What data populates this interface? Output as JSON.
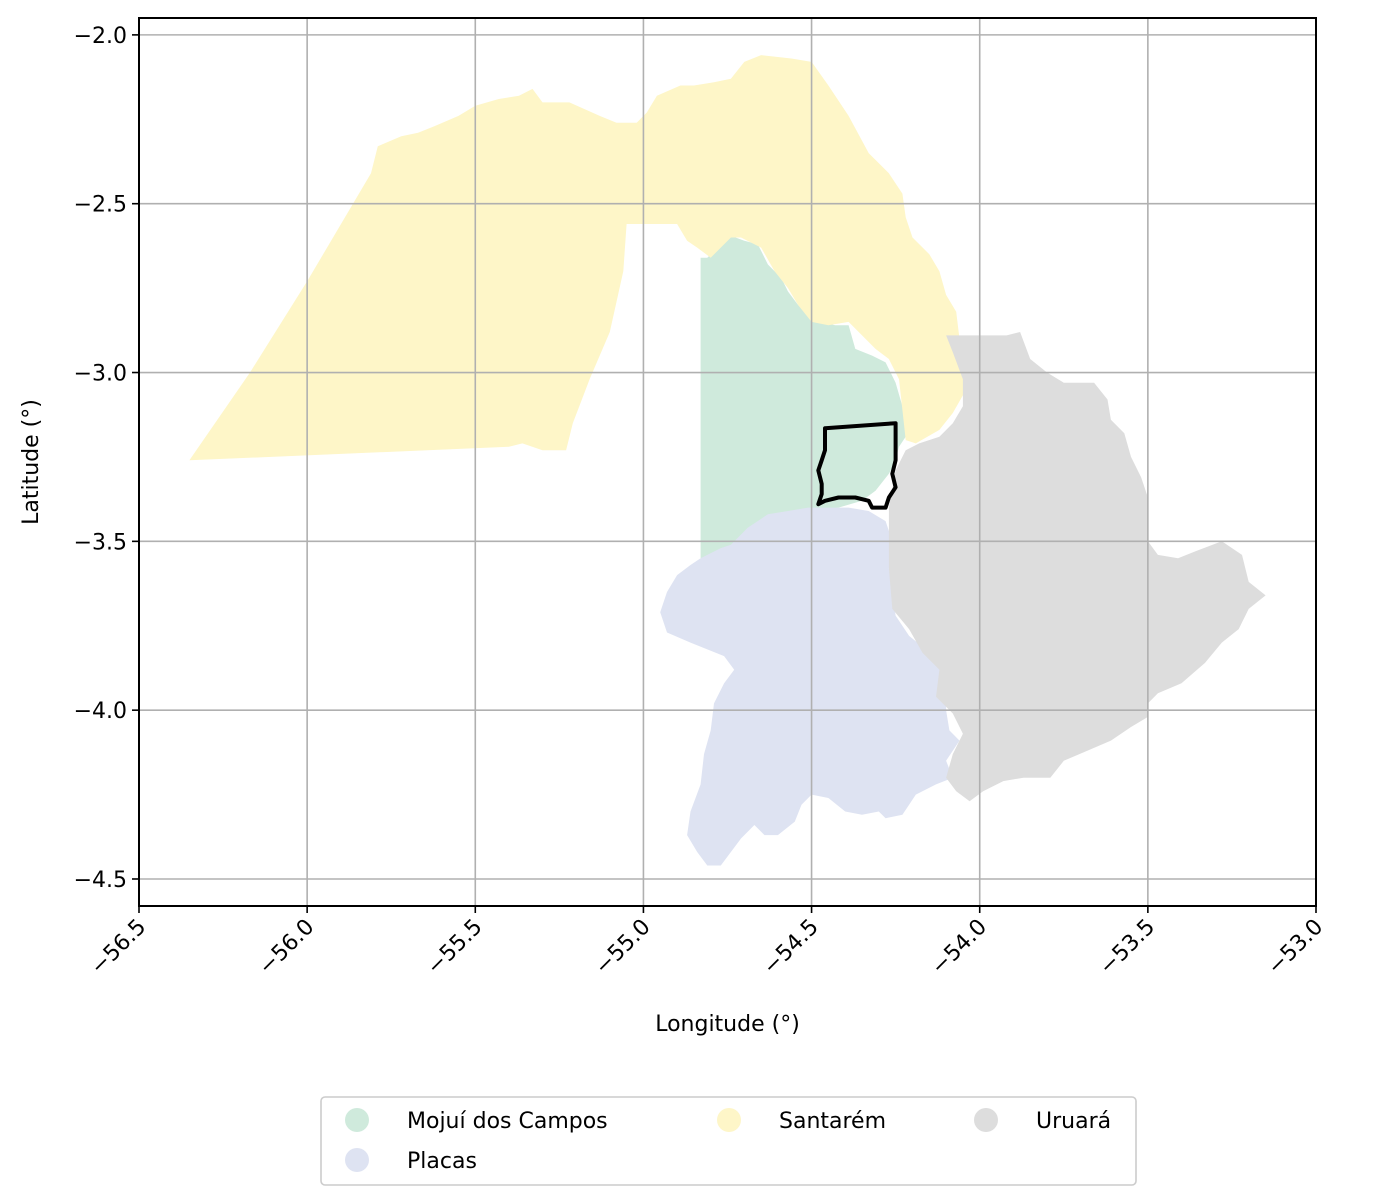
{
  "map": {
    "xlabel": "Longitude (°)",
    "ylabel": "Latitude (°)",
    "xlim": [
      -56.5,
      -53.0
    ],
    "ylim": [
      -4.58,
      -1.95
    ],
    "x_ticks": [
      -56.5,
      -56.0,
      -55.5,
      -55.0,
      -54.5,
      -54.0,
      -53.5,
      -53.0
    ],
    "x_tick_labels": [
      "−56.5",
      "−56.0",
      "−55.5",
      "−55.0",
      "−54.5",
      "−54.0",
      "−53.5",
      "−53.0"
    ],
    "y_ticks": [
      -2.0,
      -2.5,
      -3.0,
      -3.5,
      -4.0,
      -4.5
    ],
    "y_tick_labels": [
      "−2.0",
      "−2.5",
      "−3.0",
      "−3.5",
      "−4.0",
      "−4.5"
    ],
    "grid": true,
    "legend_placement": "bottom-center",
    "regions": [
      {
        "name": "Mojuí dos Campos",
        "color": "#cfeadc",
        "coords": [
          [
            -54.83,
            -2.66
          ],
          [
            -54.81,
            -2.66
          ],
          [
            -54.78,
            -2.63
          ],
          [
            -54.74,
            -2.595
          ],
          [
            -54.7,
            -2.61
          ],
          [
            -54.66,
            -2.62
          ],
          [
            -54.63,
            -2.68
          ],
          [
            -54.59,
            -2.72
          ],
          [
            -54.57,
            -2.76
          ],
          [
            -54.54,
            -2.8
          ],
          [
            -54.51,
            -2.83
          ],
          [
            -54.47,
            -2.85
          ],
          [
            -54.43,
            -2.86
          ],
          [
            -54.39,
            -2.86
          ],
          [
            -54.37,
            -2.93
          ],
          [
            -54.32,
            -2.95
          ],
          [
            -54.28,
            -2.97
          ],
          [
            -54.25,
            -3.03
          ],
          [
            -54.23,
            -3.1
          ],
          [
            -54.22,
            -3.19
          ],
          [
            -54.24,
            -3.22
          ],
          [
            -54.25,
            -3.26
          ],
          [
            -54.27,
            -3.3
          ],
          [
            -54.31,
            -3.35
          ],
          [
            -54.35,
            -3.38
          ],
          [
            -54.42,
            -3.4
          ],
          [
            -54.49,
            -3.41
          ],
          [
            -54.55,
            -3.42
          ],
          [
            -54.6,
            -3.44
          ],
          [
            -54.65,
            -3.48
          ],
          [
            -54.7,
            -3.51
          ],
          [
            -54.75,
            -3.52
          ],
          [
            -54.8,
            -3.54
          ],
          [
            -54.83,
            -3.55
          ]
        ]
      },
      {
        "name": "Placas",
        "color": "#dee3f2",
        "coords": [
          [
            -54.83,
            -3.55
          ],
          [
            -54.77,
            -3.52
          ],
          [
            -54.74,
            -3.51
          ],
          [
            -54.69,
            -3.46
          ],
          [
            -54.63,
            -3.42
          ],
          [
            -54.57,
            -3.41
          ],
          [
            -54.51,
            -3.4
          ],
          [
            -54.45,
            -3.4
          ],
          [
            -54.39,
            -3.4
          ],
          [
            -54.33,
            -3.41
          ],
          [
            -54.28,
            -3.44
          ],
          [
            -54.26,
            -3.5
          ],
          [
            -54.27,
            -3.58
          ],
          [
            -54.26,
            -3.65
          ],
          [
            -54.25,
            -3.72
          ],
          [
            -54.21,
            -3.78
          ],
          [
            -54.16,
            -3.82
          ],
          [
            -54.12,
            -3.85
          ],
          [
            -54.1,
            -3.9
          ],
          [
            -54.1,
            -4.0
          ],
          [
            -54.09,
            -4.06
          ],
          [
            -54.06,
            -4.09
          ],
          [
            -54.1,
            -4.15
          ],
          [
            -54.08,
            -4.2
          ],
          [
            -54.13,
            -4.22
          ],
          [
            -54.19,
            -4.25
          ],
          [
            -54.21,
            -4.28
          ],
          [
            -54.23,
            -4.31
          ],
          [
            -54.28,
            -4.32
          ],
          [
            -54.3,
            -4.3
          ],
          [
            -54.35,
            -4.31
          ],
          [
            -54.4,
            -4.3
          ],
          [
            -54.45,
            -4.26
          ],
          [
            -54.5,
            -4.25
          ],
          [
            -54.53,
            -4.28
          ],
          [
            -54.55,
            -4.33
          ],
          [
            -54.6,
            -4.37
          ],
          [
            -54.64,
            -4.37
          ],
          [
            -54.67,
            -4.34
          ],
          [
            -54.71,
            -4.38
          ],
          [
            -54.74,
            -4.42
          ],
          [
            -54.77,
            -4.46
          ],
          [
            -54.81,
            -4.46
          ],
          [
            -54.84,
            -4.42
          ],
          [
            -54.87,
            -4.37
          ],
          [
            -54.86,
            -4.3
          ],
          [
            -54.83,
            -4.22
          ],
          [
            -54.82,
            -4.13
          ],
          [
            -54.8,
            -4.06
          ],
          [
            -54.79,
            -3.98
          ],
          [
            -54.76,
            -3.92
          ],
          [
            -54.73,
            -3.88
          ],
          [
            -54.76,
            -3.84
          ],
          [
            -54.81,
            -3.82
          ],
          [
            -54.86,
            -3.8
          ],
          [
            -54.93,
            -3.77
          ],
          [
            -54.95,
            -3.71
          ],
          [
            -54.93,
            -3.65
          ],
          [
            -54.9,
            -3.6
          ],
          [
            -54.86,
            -3.57
          ]
        ]
      },
      {
        "name": "Santarém",
        "color": "#fef6c8",
        "coords": [
          [
            -56.35,
            -3.26
          ],
          [
            -56.17,
            -3.0
          ],
          [
            -56.0,
            -2.73
          ],
          [
            -55.81,
            -2.41
          ],
          [
            -55.79,
            -2.33
          ],
          [
            -55.72,
            -2.3
          ],
          [
            -55.67,
            -2.29
          ],
          [
            -55.62,
            -2.27
          ],
          [
            -55.55,
            -2.24
          ],
          [
            -55.5,
            -2.21
          ],
          [
            -55.43,
            -2.19
          ],
          [
            -55.37,
            -2.18
          ],
          [
            -55.33,
            -2.16
          ],
          [
            -55.3,
            -2.2
          ],
          [
            -55.22,
            -2.2
          ],
          [
            -55.13,
            -2.24
          ],
          [
            -55.08,
            -2.26
          ],
          [
            -55.02,
            -2.26
          ],
          [
            -54.99,
            -2.23
          ],
          [
            -54.96,
            -2.18
          ],
          [
            -54.89,
            -2.15
          ],
          [
            -54.85,
            -2.15
          ],
          [
            -54.79,
            -2.14
          ],
          [
            -54.74,
            -2.13
          ],
          [
            -54.7,
            -2.08
          ],
          [
            -54.65,
            -2.06
          ],
          [
            -54.56,
            -2.07
          ],
          [
            -54.5,
            -2.08
          ],
          [
            -54.45,
            -2.15
          ],
          [
            -54.39,
            -2.24
          ],
          [
            -54.33,
            -2.35
          ],
          [
            -54.27,
            -2.41
          ],
          [
            -54.23,
            -2.47
          ],
          [
            -54.22,
            -2.54
          ],
          [
            -54.2,
            -2.6
          ],
          [
            -54.15,
            -2.65
          ],
          [
            -54.12,
            -2.7
          ],
          [
            -54.1,
            -2.77
          ],
          [
            -54.07,
            -2.82
          ],
          [
            -54.06,
            -2.9
          ],
          [
            -54.05,
            -2.98
          ],
          [
            -54.04,
            -3.05
          ],
          [
            -54.08,
            -3.12
          ],
          [
            -54.12,
            -3.17
          ],
          [
            -54.19,
            -3.21
          ],
          [
            -54.22,
            -3.2
          ],
          [
            -54.23,
            -3.11
          ],
          [
            -54.24,
            -3.02
          ],
          [
            -54.27,
            -2.96
          ],
          [
            -54.31,
            -2.93
          ],
          [
            -54.36,
            -2.88
          ],
          [
            -54.39,
            -2.85
          ],
          [
            -54.45,
            -2.86
          ],
          [
            -54.5,
            -2.85
          ],
          [
            -54.54,
            -2.8
          ],
          [
            -54.57,
            -2.75
          ],
          [
            -54.61,
            -2.7
          ],
          [
            -54.65,
            -2.63
          ],
          [
            -54.71,
            -2.6
          ],
          [
            -54.74,
            -2.6
          ],
          [
            -54.8,
            -2.66
          ],
          [
            -54.84,
            -2.63
          ],
          [
            -54.87,
            -2.61
          ],
          [
            -54.9,
            -2.56
          ],
          [
            -54.95,
            -2.56
          ],
          [
            -55.05,
            -2.56
          ],
          [
            -55.06,
            -2.7
          ],
          [
            -55.1,
            -2.88
          ],
          [
            -55.16,
            -3.02
          ],
          [
            -55.21,
            -3.15
          ],
          [
            -55.23,
            -3.23
          ],
          [
            -55.3,
            -3.23
          ],
          [
            -55.36,
            -3.21
          ],
          [
            -55.4,
            -3.22
          ]
        ]
      },
      {
        "name": "Uruará",
        "color": "#dddddd",
        "coords": [
          [
            -54.1,
            -2.89
          ],
          [
            -53.92,
            -2.89
          ],
          [
            -53.88,
            -2.88
          ],
          [
            -53.85,
            -2.96
          ],
          [
            -53.8,
            -3.0
          ],
          [
            -53.75,
            -3.03
          ],
          [
            -53.66,
            -3.03
          ],
          [
            -53.62,
            -3.08
          ],
          [
            -53.61,
            -3.14
          ],
          [
            -53.57,
            -3.18
          ],
          [
            -53.55,
            -3.25
          ],
          [
            -53.52,
            -3.31
          ],
          [
            -53.5,
            -3.37
          ],
          [
            -53.5,
            -3.44
          ],
          [
            -53.5,
            -3.5
          ],
          [
            -53.47,
            -3.54
          ],
          [
            -53.41,
            -3.55
          ],
          [
            -53.36,
            -3.53
          ],
          [
            -53.28,
            -3.5
          ],
          [
            -53.22,
            -3.54
          ],
          [
            -53.2,
            -3.62
          ],
          [
            -53.15,
            -3.66
          ],
          [
            -53.2,
            -3.7
          ],
          [
            -53.23,
            -3.76
          ],
          [
            -53.28,
            -3.8
          ],
          [
            -53.33,
            -3.86
          ],
          [
            -53.4,
            -3.92
          ],
          [
            -53.47,
            -3.95
          ],
          [
            -53.5,
            -3.98
          ],
          [
            -53.5,
            -4.02
          ],
          [
            -53.55,
            -4.05
          ],
          [
            -53.61,
            -4.09
          ],
          [
            -53.68,
            -4.12
          ],
          [
            -53.75,
            -4.15
          ],
          [
            -53.79,
            -4.2
          ],
          [
            -53.87,
            -4.2
          ],
          [
            -53.93,
            -4.21
          ],
          [
            -53.99,
            -4.24
          ],
          [
            -54.03,
            -4.27
          ],
          [
            -54.07,
            -4.24
          ],
          [
            -54.1,
            -4.2
          ],
          [
            -54.08,
            -4.13
          ],
          [
            -54.05,
            -4.07
          ],
          [
            -54.08,
            -4.01
          ],
          [
            -54.13,
            -3.96
          ],
          [
            -54.12,
            -3.88
          ],
          [
            -54.17,
            -3.83
          ],
          [
            -54.21,
            -3.76
          ],
          [
            -54.26,
            -3.7
          ],
          [
            -54.27,
            -3.58
          ],
          [
            -54.27,
            -3.49
          ],
          [
            -54.27,
            -3.4
          ],
          [
            -54.25,
            -3.29
          ],
          [
            -54.22,
            -3.23
          ],
          [
            -54.18,
            -3.21
          ],
          [
            -54.12,
            -3.19
          ],
          [
            -54.08,
            -3.15
          ],
          [
            -54.05,
            -3.1
          ],
          [
            -54.05,
            -3.02
          ],
          [
            -54.08,
            -2.94
          ]
        ]
      }
    ],
    "highlight_outline": {
      "coords": [
        [
          -54.46,
          -3.165
        ],
        [
          -54.25,
          -3.15
        ],
        [
          -54.25,
          -3.26
        ],
        [
          -54.26,
          -3.3
        ],
        [
          -54.25,
          -3.34
        ],
        [
          -54.27,
          -3.37
        ],
        [
          -54.28,
          -3.4
        ],
        [
          -54.32,
          -3.4
        ],
        [
          -54.33,
          -3.38
        ],
        [
          -54.37,
          -3.37
        ],
        [
          -54.42,
          -3.37
        ],
        [
          -54.46,
          -3.38
        ],
        [
          -54.48,
          -3.39
        ],
        [
          -54.47,
          -3.36
        ],
        [
          -54.47,
          -3.33
        ],
        [
          -54.48,
          -3.29
        ],
        [
          -54.47,
          -3.26
        ],
        [
          -54.46,
          -3.23
        ],
        [
          -54.46,
          -3.19
        ]
      ],
      "color": "#000000"
    },
    "legend": {
      "entries": [
        {
          "label": "Mojuí dos Campos",
          "color": "#cfeadc"
        },
        {
          "label": "Santarém",
          "color": "#fef6c8"
        },
        {
          "label": "Uruará",
          "color": "#dddddd"
        },
        {
          "label": "Placas",
          "color": "#dee3f2"
        }
      ]
    }
  }
}
